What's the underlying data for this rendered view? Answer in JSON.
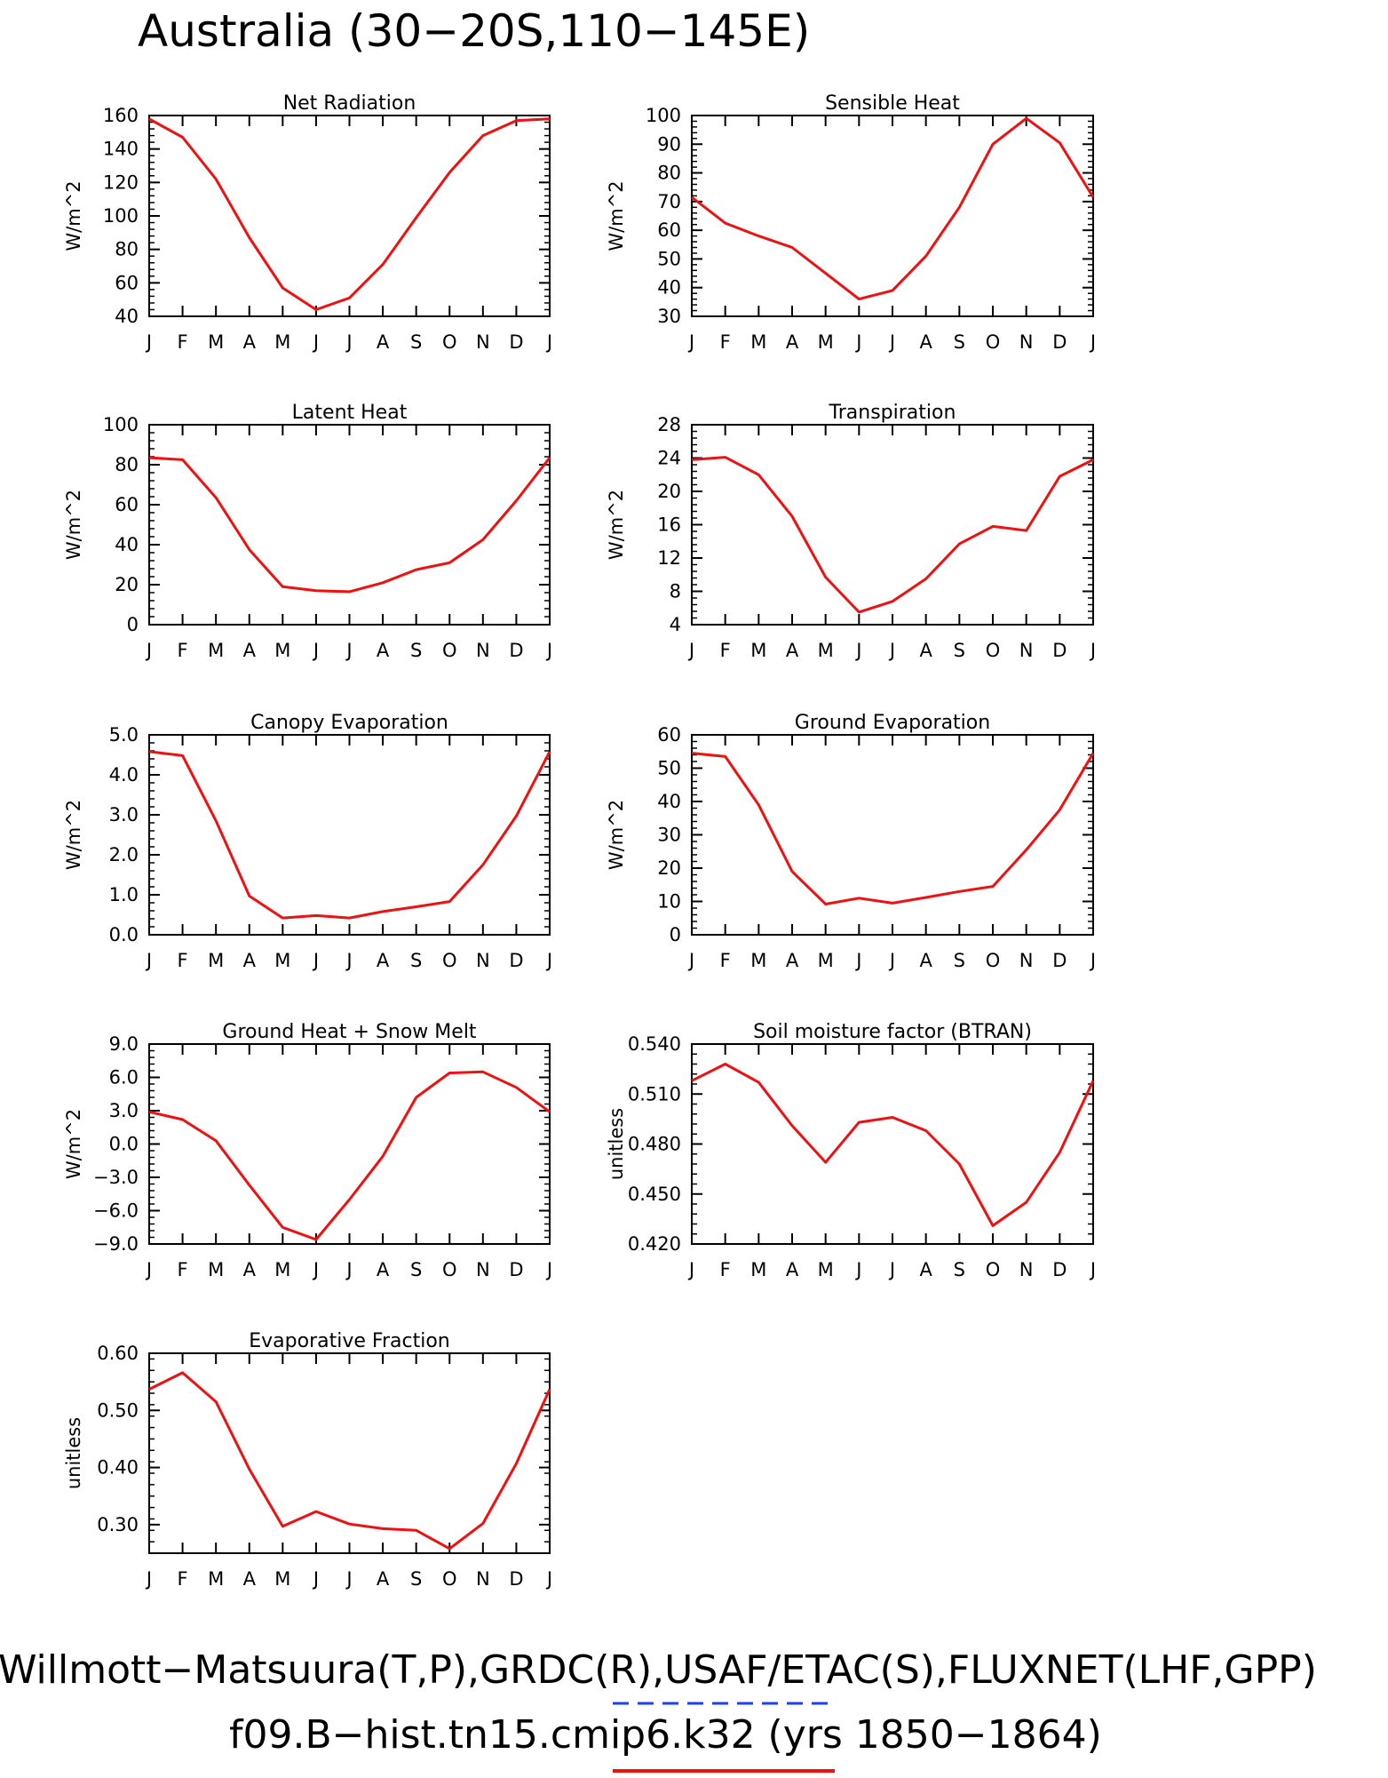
{
  "title": "Australia (30−20S,110−145E)",
  "footer": {
    "observations": "Willmott−Matsuura(T,P),GRDC(R),USAF/ETAC(S),FLUXNET(LHF,GPP)",
    "model": "f09.B−hist.tn15.cmip6.k32 (yrs 1850−1864)",
    "obs_line_color": "#1f3fff",
    "model_line_color": "#ee1111"
  },
  "colors": {
    "series": "#ee1111",
    "axis": "#000000"
  },
  "chart_data": [
    {
      "type": "line",
      "title": "Net Radiation",
      "ylabel": "W/m^2",
      "x": [
        "J",
        "F",
        "M",
        "A",
        "M",
        "J",
        "J",
        "A",
        "S",
        "O",
        "N",
        "D",
        "J"
      ],
      "ylim": [
        40,
        160
      ],
      "yticks": [
        "40",
        "60",
        "80",
        "100",
        "120",
        "140",
        "160"
      ],
      "values": [
        158,
        147,
        122,
        87,
        57,
        44,
        51,
        71,
        99,
        126,
        148,
        157,
        158
      ]
    },
    {
      "type": "line",
      "title": "Sensible Heat",
      "ylabel": "W/m^2",
      "x": [
        "J",
        "F",
        "M",
        "A",
        "M",
        "J",
        "J",
        "A",
        "S",
        "O",
        "N",
        "D",
        "J"
      ],
      "ylim": [
        30,
        100
      ],
      "yticks": [
        "30",
        "40",
        "50",
        "60",
        "70",
        "80",
        "90",
        "100"
      ],
      "values": [
        71.5,
        62.5,
        58,
        54,
        45,
        36,
        39,
        51,
        68,
        90,
        99,
        90.5,
        71.5
      ]
    },
    {
      "type": "line",
      "title": "Latent Heat",
      "ylabel": "W/m^2",
      "x": [
        "J",
        "F",
        "M",
        "A",
        "M",
        "J",
        "J",
        "A",
        "S",
        "O",
        "N",
        "D",
        "J"
      ],
      "ylim": [
        0,
        100
      ],
      "yticks": [
        "0",
        "20",
        "40",
        "60",
        "80",
        "100"
      ],
      "values": [
        83.5,
        82.5,
        63.5,
        37.5,
        19,
        17,
        16.5,
        21,
        27.5,
        31,
        42.5,
        62,
        83.5
      ]
    },
    {
      "type": "line",
      "title": "Transpiration",
      "ylabel": "W/m^2",
      "x": [
        "J",
        "F",
        "M",
        "A",
        "M",
        "J",
        "J",
        "A",
        "S",
        "O",
        "N",
        "D",
        "J"
      ],
      "ylim": [
        4,
        28
      ],
      "yticks": [
        "4",
        "8",
        "12",
        "16",
        "20",
        "24",
        "28"
      ],
      "values": [
        23.8,
        24.1,
        22,
        17,
        9.7,
        5.5,
        6.8,
        9.5,
        13.7,
        15.8,
        15.3,
        21.8,
        23.8
      ]
    },
    {
      "type": "line",
      "title": "Canopy Evaporation",
      "ylabel": "W/m^2",
      "x": [
        "J",
        "F",
        "M",
        "A",
        "M",
        "J",
        "J",
        "A",
        "S",
        "O",
        "N",
        "D",
        "J"
      ],
      "ylim": [
        0,
        5
      ],
      "yticks": [
        "0.0",
        "1.0",
        "2.0",
        "3.0",
        "4.0",
        "5.0"
      ],
      "values": [
        4.58,
        4.48,
        2.85,
        0.97,
        0.42,
        0.48,
        0.42,
        0.58,
        0.7,
        0.83,
        1.75,
        2.97,
        4.58
      ]
    },
    {
      "type": "line",
      "title": "Ground Evaporation",
      "ylabel": "W/m^2",
      "x": [
        "J",
        "F",
        "M",
        "A",
        "M",
        "J",
        "J",
        "A",
        "S",
        "O",
        "N",
        "D",
        "J"
      ],
      "ylim": [
        0,
        60
      ],
      "yticks": [
        "0",
        "10",
        "20",
        "30",
        "40",
        "50",
        "60"
      ],
      "values": [
        54.5,
        53.5,
        39,
        19,
        9.2,
        11,
        9.5,
        11.2,
        13,
        14.5,
        25.5,
        37.5,
        54.5
      ]
    },
    {
      "type": "line",
      "title": "Ground Heat + Snow Melt",
      "ylabel": "W/m^2",
      "x": [
        "J",
        "F",
        "M",
        "A",
        "M",
        "J",
        "J",
        "A",
        "S",
        "O",
        "N",
        "D",
        "J"
      ],
      "ylim": [
        -9,
        9
      ],
      "yticks": [
        "−9.0",
        "−6.0",
        "−3.0",
        "0.0",
        "3.0",
        "6.0",
        "9.0"
      ],
      "values": [
        2.9,
        2.2,
        0.3,
        -3.7,
        -7.5,
        -8.6,
        -5.0,
        -1.1,
        4.2,
        6.4,
        6.5,
        5.1,
        2.9
      ]
    },
    {
      "type": "line",
      "title": "Soil moisture factor (BTRAN)",
      "ylabel": "unitless",
      "x": [
        "J",
        "F",
        "M",
        "A",
        "M",
        "J",
        "J",
        "A",
        "S",
        "O",
        "N",
        "D",
        "J"
      ],
      "ylim": [
        0.42,
        0.54
      ],
      "yticks": [
        "0.420",
        "0.450",
        "0.480",
        "0.510",
        "0.540"
      ],
      "values": [
        0.518,
        0.528,
        0.517,
        0.491,
        0.469,
        0.493,
        0.496,
        0.488,
        0.468,
        0.431,
        0.445,
        0.475,
        0.518
      ]
    },
    {
      "type": "line",
      "title": "Evaporative Fraction",
      "ylabel": "unitless",
      "x": [
        "J",
        "F",
        "M",
        "A",
        "M",
        "J",
        "J",
        "A",
        "S",
        "O",
        "N",
        "D",
        "J"
      ],
      "ylim": [
        0.25,
        0.6
      ],
      "yticks": [
        "0.30",
        "0.40",
        "0.50",
        "0.60"
      ],
      "yticks_values": [
        0.3,
        0.4,
        0.5,
        0.6
      ],
      "values": [
        0.537,
        0.566,
        0.515,
        0.397,
        0.297,
        0.323,
        0.301,
        0.293,
        0.29,
        0.258,
        0.302,
        0.407,
        0.537
      ]
    }
  ]
}
